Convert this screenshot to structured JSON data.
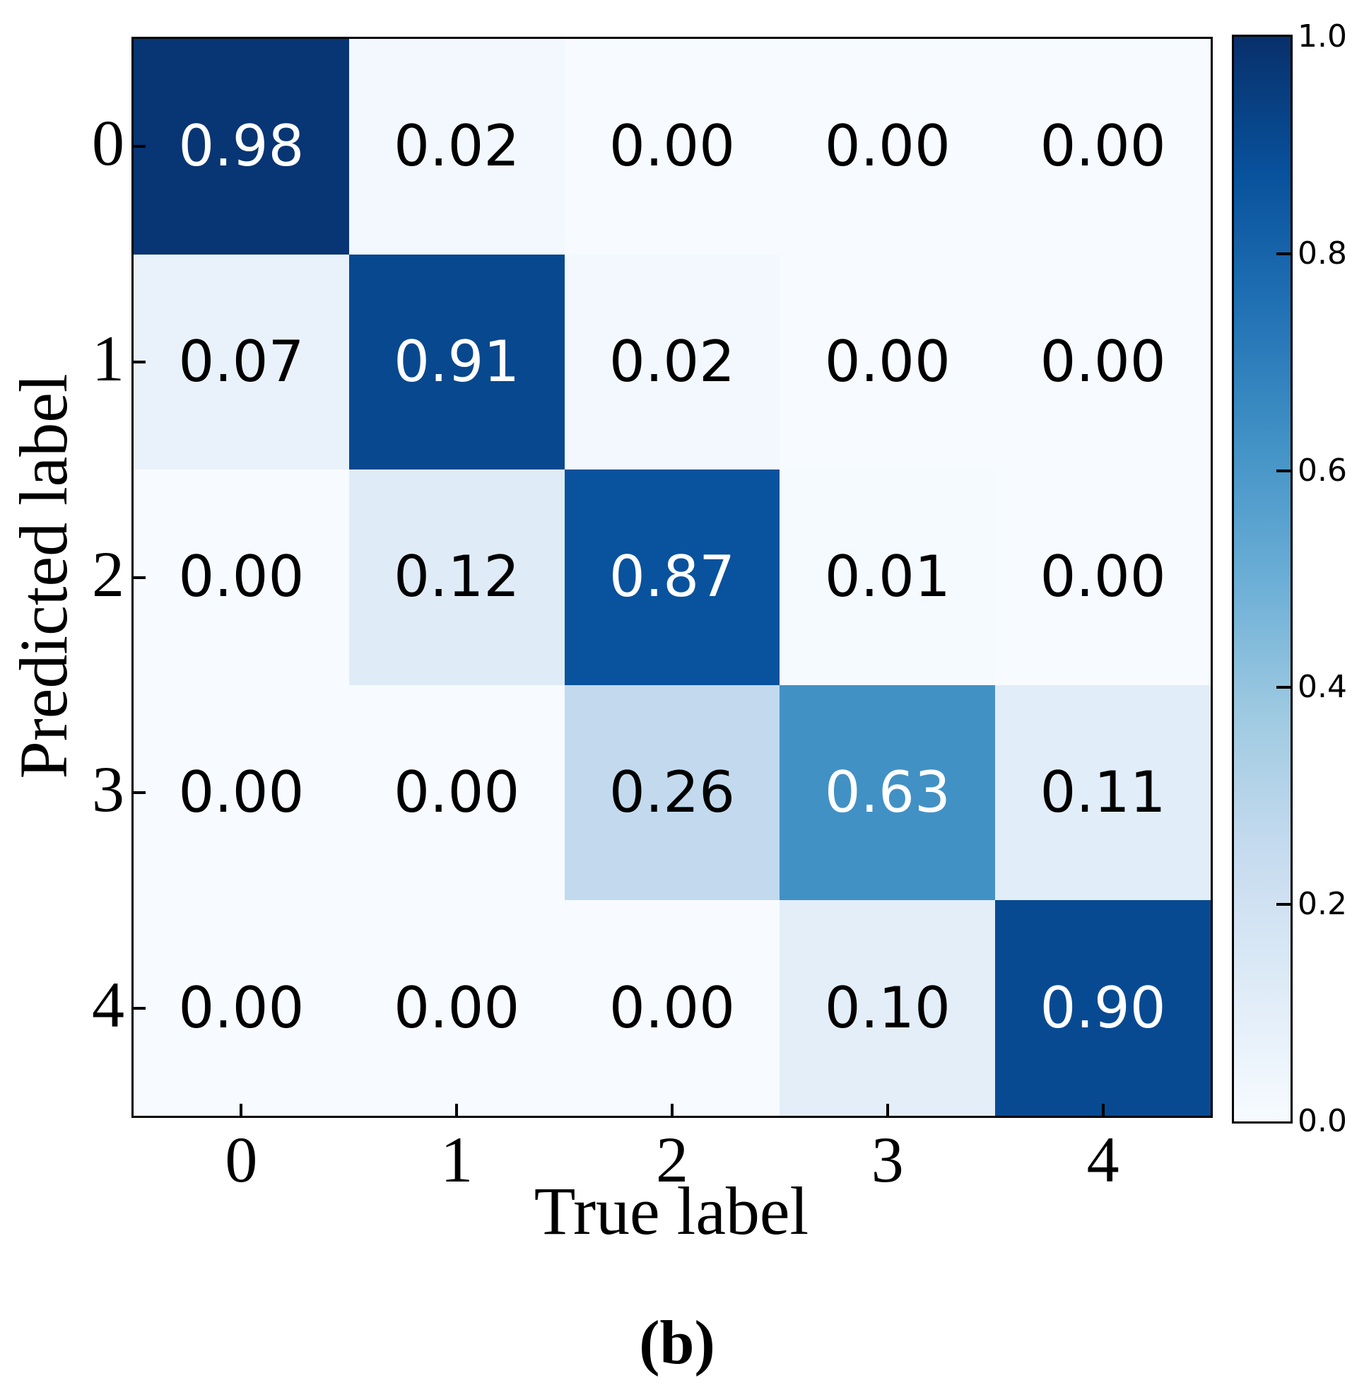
{
  "figure": {
    "caption": "(b)",
    "background": "#ffffff",
    "axis_color": "#000000",
    "text_color": "#000000"
  },
  "chart_data": {
    "type": "heatmap",
    "title": "",
    "xlabel": "True label",
    "ylabel": "Predicted label",
    "x_categories": [
      "0",
      "1",
      "2",
      "3",
      "4"
    ],
    "y_categories": [
      "0",
      "1",
      "2",
      "3",
      "4"
    ],
    "matrix": [
      [
        0.98,
        0.02,
        0.0,
        0.0,
        0.0
      ],
      [
        0.07,
        0.91,
        0.02,
        0.0,
        0.0
      ],
      [
        0.0,
        0.12,
        0.87,
        0.01,
        0.0
      ],
      [
        0.0,
        0.0,
        0.26,
        0.63,
        0.11
      ],
      [
        0.0,
        0.0,
        0.0,
        0.1,
        0.9
      ]
    ],
    "cell_value_format": "2dp",
    "value_range": [
      0.0,
      1.0
    ],
    "grid": false,
    "legend_position": "colorbar-right",
    "colormap": {
      "name": "Blues",
      "anchors": [
        {
          "pos": 0.0,
          "rgb": [
            247,
            251,
            255
          ]
        },
        {
          "pos": 0.125,
          "rgb": [
            222,
            235,
            247
          ]
        },
        {
          "pos": 0.25,
          "rgb": [
            198,
            219,
            239
          ]
        },
        {
          "pos": 0.375,
          "rgb": [
            158,
            202,
            225
          ]
        },
        {
          "pos": 0.5,
          "rgb": [
            107,
            174,
            214
          ]
        },
        {
          "pos": 0.625,
          "rgb": [
            66,
            146,
            198
          ]
        },
        {
          "pos": 0.75,
          "rgb": [
            33,
            113,
            181
          ]
        },
        {
          "pos": 0.875,
          "rgb": [
            8,
            81,
            156
          ]
        },
        {
          "pos": 1.0,
          "rgb": [
            8,
            48,
            107
          ]
        }
      ]
    },
    "cell_text_rule": {
      "threshold": 0.5,
      "above_color": "#ffffff",
      "below_color": "#000000"
    },
    "colorbar": {
      "tick_labels": [
        "1.0",
        "0.8",
        "0.6",
        "0.4",
        "0.2",
        "0.0"
      ],
      "tick_values": [
        1.0,
        0.8,
        0.6,
        0.4,
        0.2,
        0.0
      ],
      "marked_tick_values": [
        0.8,
        0.6,
        0.4,
        0.2
      ]
    }
  }
}
